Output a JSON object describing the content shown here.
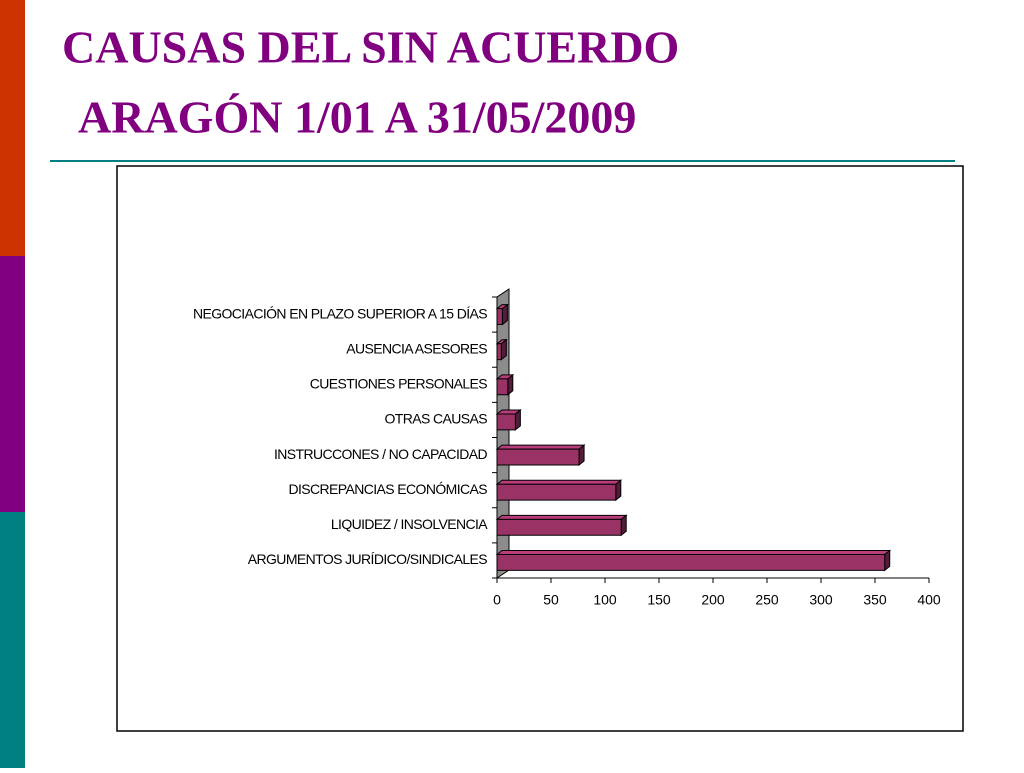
{
  "chart_data": {
    "type": "bar3d-horizontal",
    "title": "CAUSAS DEL SIN ACUERDO",
    "subtitle": "ARAGÓN 1/01 A 31/05/2009",
    "categories": [
      "ARGUMENTOS JURÍDICO/SINDICALES",
      "LIQUIDEZ / INSOLVENCIA",
      "DISCREPANCIAS ECONÓMICAS",
      "INSTRUCCONES / NO CAPACIDAD",
      "OTRAS CAUSAS",
      "CUESTIONES PERSONALES",
      "AUSENCIA ASESORES",
      "NEGOCIACIÓN EN PLAZO SUPERIOR A 15 DÍAS"
    ],
    "values": [
      359,
      115,
      110,
      76,
      17,
      10,
      4,
      5
    ],
    "color": "#993366",
    "xlim": [
      0,
      400
    ],
    "xticks": [
      0,
      50,
      100,
      150,
      200,
      250,
      300,
      350,
      400
    ]
  }
}
